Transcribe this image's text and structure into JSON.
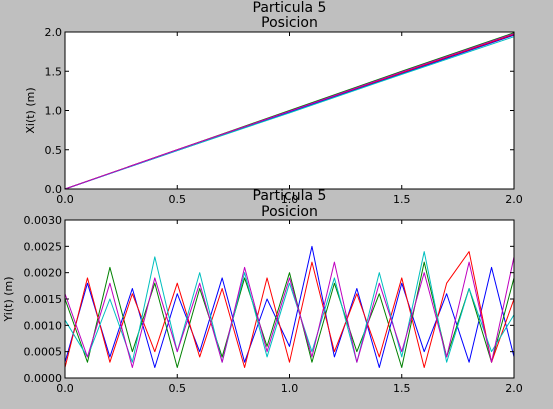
{
  "chart_data": [
    {
      "type": "line",
      "title": "Particula 5",
      "subtitle": "Posicion",
      "xlabel": "",
      "ylabel": "Xi(t) (m)",
      "xlim": [
        0.0,
        2.0
      ],
      "ylim": [
        0.0,
        2.0
      ],
      "xticks": [
        "0.0",
        "0.5",
        "1.0",
        "1.5",
        "2.0"
      ],
      "yticks": [
        "0.0",
        "0.5",
        "1.0",
        "1.5",
        "2.0"
      ],
      "grid": false,
      "series": [
        {
          "color": "#0000ff",
          "x": [
            0.0,
            0.5,
            1.0,
            1.5,
            2.0
          ],
          "y": [
            0.0,
            0.49,
            0.98,
            1.47,
            1.96
          ]
        },
        {
          "color": "#008000",
          "x": [
            0.0,
            0.5,
            1.0,
            1.5,
            2.0
          ],
          "y": [
            0.0,
            0.5,
            1.0,
            1.5,
            1.99
          ]
        },
        {
          "color": "#ff0000",
          "x": [
            0.0,
            0.5,
            1.0,
            1.5,
            2.0
          ],
          "y": [
            0.0,
            0.5,
            0.99,
            1.48,
            1.97
          ]
        },
        {
          "color": "#00bfbf",
          "x": [
            0.0,
            0.5,
            1.0,
            1.5,
            2.0
          ],
          "y": [
            0.0,
            0.49,
            0.97,
            1.46,
            1.94
          ]
        },
        {
          "color": "#bf00bf",
          "x": [
            0.0,
            0.5,
            1.0,
            1.5,
            2.0
          ],
          "y": [
            0.0,
            0.5,
            0.99,
            1.49,
            1.98
          ]
        }
      ]
    },
    {
      "type": "line",
      "title": "Particula 5",
      "subtitle": "Posicion",
      "xlabel": "",
      "ylabel": "Yi(t) (m)",
      "xlim": [
        0.0,
        2.0
      ],
      "ylim": [
        0.0,
        0.003
      ],
      "xticks": [
        "0.0",
        "0.5",
        "1.0",
        "1.5",
        "2.0"
      ],
      "yticks": [
        "0.0000",
        "0.0005",
        "0.0010",
        "0.0015",
        "0.0020",
        "0.0025",
        "0.0030"
      ],
      "grid": false,
      "series": [
        {
          "color": "#0000ff",
          "x": [
            0.0,
            0.1,
            0.2,
            0.3,
            0.4,
            0.5,
            0.6,
            0.7,
            0.8,
            0.9,
            1.0,
            1.1,
            1.2,
            1.3,
            1.4,
            1.5,
            1.6,
            1.7,
            1.8,
            1.9,
            2.0
          ],
          "y": [
            0.0003,
            0.0018,
            0.0004,
            0.0017,
            0.0002,
            0.0016,
            0.0005,
            0.0019,
            0.0003,
            0.0015,
            0.0006,
            0.0025,
            0.0004,
            0.0017,
            0.0002,
            0.0018,
            0.0005,
            0.0016,
            0.0003,
            0.0021,
            0.0004
          ]
        },
        {
          "color": "#008000",
          "x": [
            0.0,
            0.1,
            0.2,
            0.3,
            0.4,
            0.5,
            0.6,
            0.7,
            0.8,
            0.9,
            1.0,
            1.1,
            1.2,
            1.3,
            1.4,
            1.5,
            1.6,
            1.7,
            1.8,
            1.9,
            2.0
          ],
          "y": [
            0.0015,
            0.0003,
            0.0021,
            0.0005,
            0.0018,
            0.0002,
            0.0017,
            0.0004,
            0.0019,
            0.0006,
            0.002,
            0.0003,
            0.0018,
            0.0005,
            0.0016,
            0.0002,
            0.0022,
            0.0004,
            0.0017,
            0.0003,
            0.0019
          ]
        },
        {
          "color": "#ff0000",
          "x": [
            0.0,
            0.1,
            0.2,
            0.3,
            0.4,
            0.5,
            0.6,
            0.7,
            0.8,
            0.9,
            1.0,
            1.1,
            1.2,
            1.3,
            1.4,
            1.5,
            1.6,
            1.7,
            1.8,
            1.9,
            2.0
          ],
          "y": [
            0.0002,
            0.0019,
            0.0003,
            0.0016,
            0.0005,
            0.0018,
            0.0004,
            0.0017,
            0.0002,
            0.0019,
            0.0003,
            0.0022,
            0.0005,
            0.0016,
            0.0004,
            0.0019,
            0.0002,
            0.0018,
            0.0024,
            0.0003,
            0.0015
          ]
        },
        {
          "color": "#00bfbf",
          "x": [
            0.0,
            0.1,
            0.2,
            0.3,
            0.4,
            0.5,
            0.6,
            0.7,
            0.8,
            0.9,
            1.0,
            1.1,
            1.2,
            1.3,
            1.4,
            1.5,
            1.6,
            1.7,
            1.8,
            1.9,
            2.0
          ],
          "y": [
            0.0011,
            0.0004,
            0.0015,
            0.0003,
            0.0023,
            0.0005,
            0.002,
            0.0003,
            0.002,
            0.0004,
            0.0018,
            0.0005,
            0.0019,
            0.0003,
            0.002,
            0.0004,
            0.0024,
            0.0003,
            0.0017,
            0.0005,
            0.0012
          ]
        },
        {
          "color": "#bf00bf",
          "x": [
            0.0,
            0.1,
            0.2,
            0.3,
            0.4,
            0.5,
            0.6,
            0.7,
            0.8,
            0.9,
            1.0,
            1.1,
            1.2,
            1.3,
            1.4,
            1.5,
            1.6,
            1.7,
            1.8,
            1.9,
            2.0
          ],
          "y": [
            0.0016,
            0.0004,
            0.0018,
            0.0002,
            0.0019,
            0.0005,
            0.0018,
            0.0003,
            0.0021,
            0.0005,
            0.0019,
            0.0004,
            0.0022,
            0.0003,
            0.0018,
            0.0005,
            0.002,
            0.0004,
            0.0022,
            0.0003,
            0.0023
          ]
        }
      ]
    }
  ]
}
